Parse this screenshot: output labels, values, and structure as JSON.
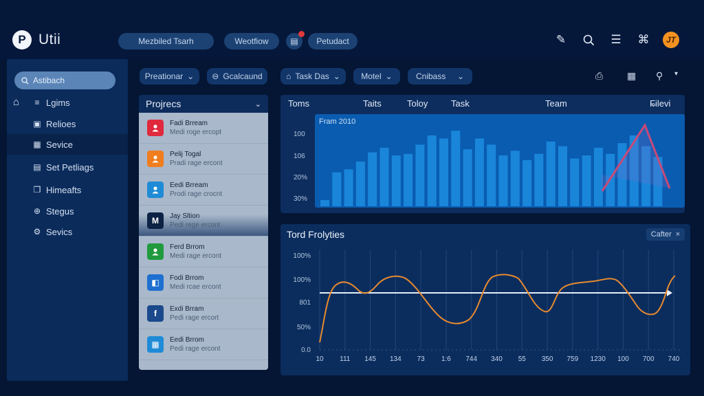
{
  "header": {
    "app_name": "Utii",
    "logo_glyph": "P",
    "pills": [
      {
        "label": "Mezbiled Tsarh"
      },
      {
        "label": "Weotfiow"
      },
      {
        "label": "Petudact"
      }
    ],
    "notification_icon": "inbox-icon",
    "right_icons": [
      "pen-icon",
      "search-icon",
      "list-icon",
      "puzzle-icon"
    ],
    "avatar_initials": "JT",
    "avatar_color": "#f39221"
  },
  "sidebar": {
    "search_placeholder": "Astibach",
    "items": [
      {
        "label": "Lgims",
        "icon": "menu-icon",
        "glyph": "≡"
      },
      {
        "label": "Relioes",
        "icon": "image-gallery-icon",
        "glyph": "▣"
      },
      {
        "label": "Sevice",
        "icon": "grid-icon",
        "glyph": "▦",
        "active": true
      },
      {
        "label": "Set Petliags",
        "icon": "window-icon",
        "glyph": "▤"
      },
      {
        "label": "Himeafts",
        "icon": "folder-icon",
        "glyph": "❐"
      },
      {
        "label": "Stegus",
        "icon": "globe-icon",
        "glyph": "⊕"
      },
      {
        "label": "Sevics",
        "icon": "gear-icon",
        "glyph": "⚙"
      }
    ]
  },
  "filters": [
    {
      "label": "Preationar",
      "icon": "",
      "dropdown": true
    },
    {
      "label": "Gcalcaund",
      "icon": "lock-icon",
      "glyph": "⊖",
      "dropdown": false
    },
    {
      "label": "Task Das",
      "icon": "home-icon",
      "glyph": "⌂",
      "dropdown": true
    },
    {
      "label": "Motel",
      "icon": "",
      "dropdown": true
    },
    {
      "label": "Cnibass",
      "icon": "",
      "dropdown": true
    }
  ],
  "toolbar_icons": [
    "save-icon",
    "calendar-icon",
    "add-user-icon",
    "filter-icon"
  ],
  "projects": {
    "title": "Projrecs",
    "items": [
      {
        "name": "Fadi Brream",
        "sub": "Medi roge ercopt",
        "color": "#e0293d",
        "glyph": "👤"
      },
      {
        "name": "Pelij Togal",
        "sub": "Pradi rage ercont",
        "color": "#f07d1e",
        "glyph": "👤"
      },
      {
        "name": "Eedi Brream",
        "sub": "Prodi rage crocnt",
        "color": "#1f8bd6",
        "glyph": "👤"
      },
      {
        "name": "Jay Sltion",
        "sub": "Pedi rege ercont",
        "color": "#0c2345",
        "glyph": "M"
      },
      {
        "name": "Ferd Brrom",
        "sub": "Medi rage ercont",
        "color": "#219a3e",
        "glyph": "👤"
      },
      {
        "name": "Fodi Brrom",
        "sub": "Medi rcae ercont",
        "color": "#1d6fd0",
        "glyph": "◧"
      },
      {
        "name": "Exdi Brram",
        "sub": "Pedi rage ercort",
        "color": "#1b4a8c",
        "glyph": "f"
      },
      {
        "name": "Eedi Brrom",
        "sub": "Pedi rage ercont",
        "color": "#1f8bd6",
        "glyph": "▦"
      }
    ]
  },
  "bar_panel": {
    "tabs": [
      "Toms",
      "Taits",
      "Toloy",
      "Task",
      "Team"
    ],
    "filter_label": "Filevi"
  },
  "line_panel": {
    "title": "Tord Frolyties",
    "filter_chip": "Cafter"
  },
  "chart_data": [
    {
      "type": "bar",
      "title": "",
      "legend": [
        "Fram 2010"
      ],
      "y_tick_labels": [
        "100",
        "106",
        "20%",
        "30%"
      ],
      "values": [
        8,
        44,
        48,
        58,
        70,
        76,
        66,
        68,
        80,
        92,
        88,
        98,
        74,
        88,
        80,
        66,
        72,
        60,
        68,
        84,
        78,
        62,
        66,
        76,
        68,
        82,
        92,
        78,
        64
      ],
      "overlay_line": {
        "type": "line",
        "color": "#c74a78",
        "points": [
          [
            0,
            40
          ],
          [
            1,
            96
          ],
          [
            2,
            10
          ]
        ]
      },
      "color": "#1a86da"
    },
    {
      "type": "line",
      "title": "Tord Frolyties",
      "x_tick_labels": [
        "10",
        "111",
        "145",
        "134",
        "73",
        "1:6",
        "744",
        "340",
        "55",
        "350",
        "759",
        "1230",
        "100",
        "700",
        "740"
      ],
      "y_tick_labels": [
        "100%",
        "100%",
        "801",
        "50%",
        "0.0"
      ],
      "series": [
        {
          "name": "trend",
          "color": "#e88a2e",
          "values": [
            10,
            72,
            58,
            75,
            40,
            20,
            75,
            60,
            30,
            66,
            72,
            48,
            40,
            50,
            70
          ]
        },
        {
          "name": "baseline",
          "color": "#e6eef8",
          "values": [
            60,
            60,
            60,
            60,
            60,
            60,
            60,
            60,
            60,
            60,
            60,
            60,
            60,
            60,
            60
          ]
        }
      ],
      "grid": true
    }
  ]
}
